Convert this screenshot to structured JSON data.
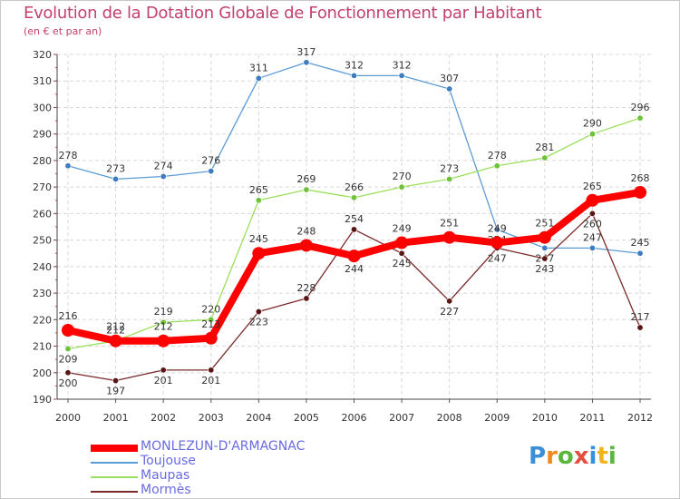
{
  "chart_data": {
    "type": "line",
    "title": "Evolution de la Dotation Globale de Fonctionnement par Habitant",
    "subtitle": "(en € et par an)",
    "xlabel": "",
    "ylabel": "",
    "ylim": [
      190,
      320
    ],
    "yticks": [
      190,
      200,
      210,
      220,
      230,
      240,
      250,
      260,
      270,
      280,
      290,
      300,
      310,
      320
    ],
    "x": [
      "2000",
      "2001",
      "2002",
      "2003",
      "2004",
      "2005",
      "2006",
      "2007",
      "2008",
      "2009",
      "2010",
      "2011",
      "2012"
    ],
    "grid": true,
    "legend_position": "bottom-left",
    "series": [
      {
        "name": "Toujouse",
        "color": "#5b9bd5",
        "dot_color": "#3e7cc0",
        "values": [
          278,
          273,
          274,
          276,
          311,
          317,
          312,
          312,
          307,
          254,
          247,
          247,
          245
        ]
      },
      {
        "name": "Maupas",
        "color": "#9be05b",
        "dot_color": "#6fc23a",
        "values": [
          209,
          212,
          219,
          220,
          265,
          269,
          266,
          270,
          273,
          278,
          281,
          290,
          296
        ]
      },
      {
        "name": "Mormès",
        "color": "#7a2a2a",
        "dot_color": "#5a1515",
        "values": [
          200,
          197,
          201,
          201,
          223,
          228,
          254,
          245,
          227,
          247,
          243,
          260,
          217
        ]
      },
      {
        "name": "MONLEZUN-D'ARMAGNAC",
        "color": "#ff0000",
        "dot_color": "#ff0000",
        "values": [
          216,
          212,
          212,
          213,
          245,
          248,
          244,
          249,
          251,
          249,
          251,
          265,
          268
        ]
      }
    ]
  },
  "legend": {
    "items": [
      {
        "label": "MONLEZUN-D'ARMAGNAC",
        "color": "#ff0000"
      },
      {
        "label": "Toujouse",
        "color": "#5b9bd5"
      },
      {
        "label": "Maupas",
        "color": "#9be05b"
      },
      {
        "label": "Mormès",
        "color": "#7a2a2a"
      }
    ]
  },
  "brand": {
    "letters": [
      "P",
      "r",
      "o",
      "x",
      "i",
      "t",
      "i"
    ],
    "colors": [
      "#3a8fd8",
      "#f08a1c",
      "#59b83a",
      "#e84c3d",
      "#3a8fd8",
      "#f0b51c",
      "#59b83a"
    ]
  }
}
